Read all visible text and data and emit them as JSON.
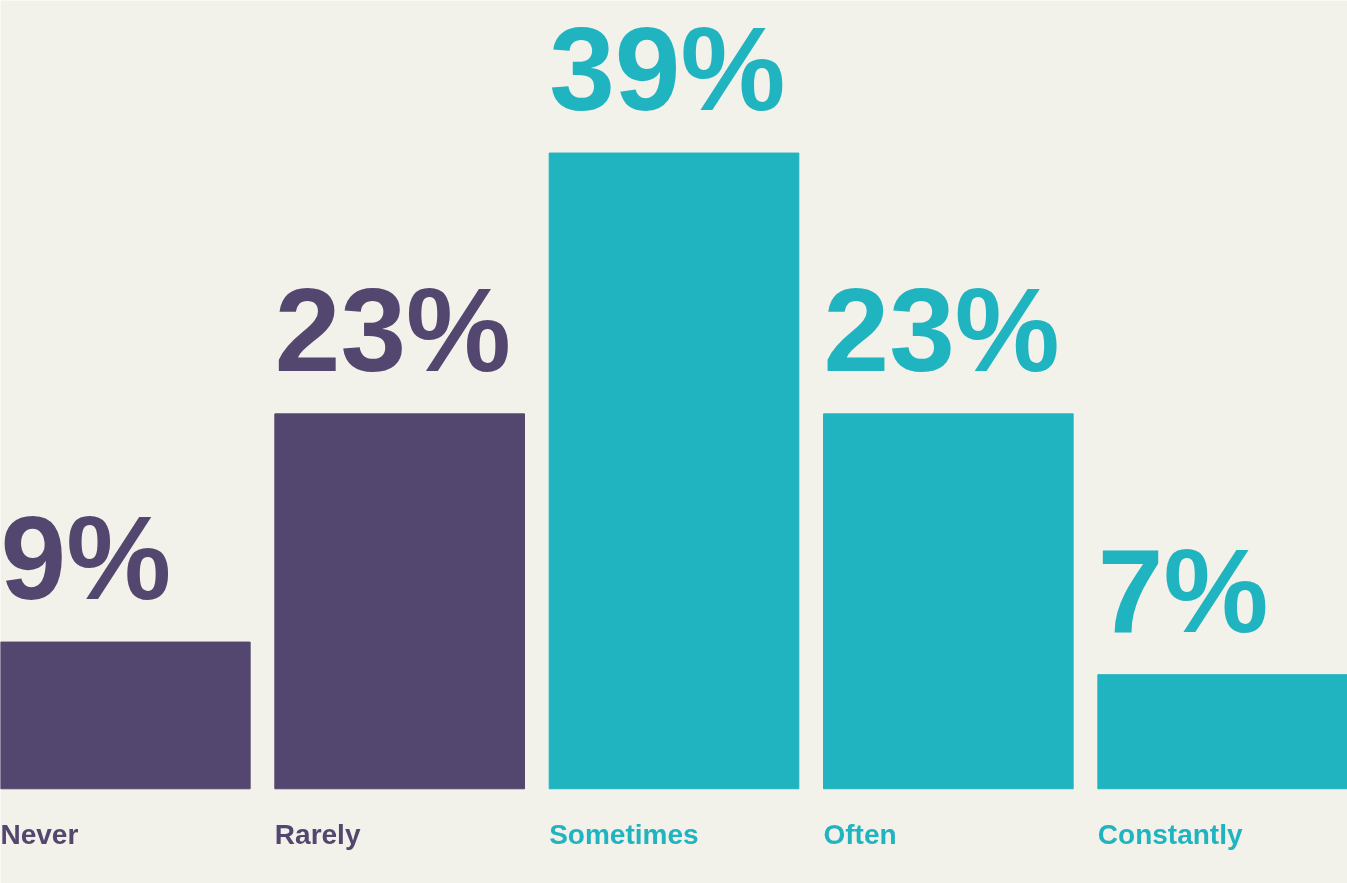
{
  "chart_data": {
    "type": "bar",
    "categories": [
      "Never",
      "Rarely",
      "Sometimes",
      "Often",
      "Constantly"
    ],
    "values": [
      9,
      23,
      39,
      23,
      7
    ],
    "colors": [
      "#54476f",
      "#54476f",
      "#20b4c1",
      "#20b4c1",
      "#20b4c1"
    ],
    "value_labels": [
      "9%",
      "23%",
      "39%",
      "23%",
      "7%"
    ],
    "grid": false
  }
}
